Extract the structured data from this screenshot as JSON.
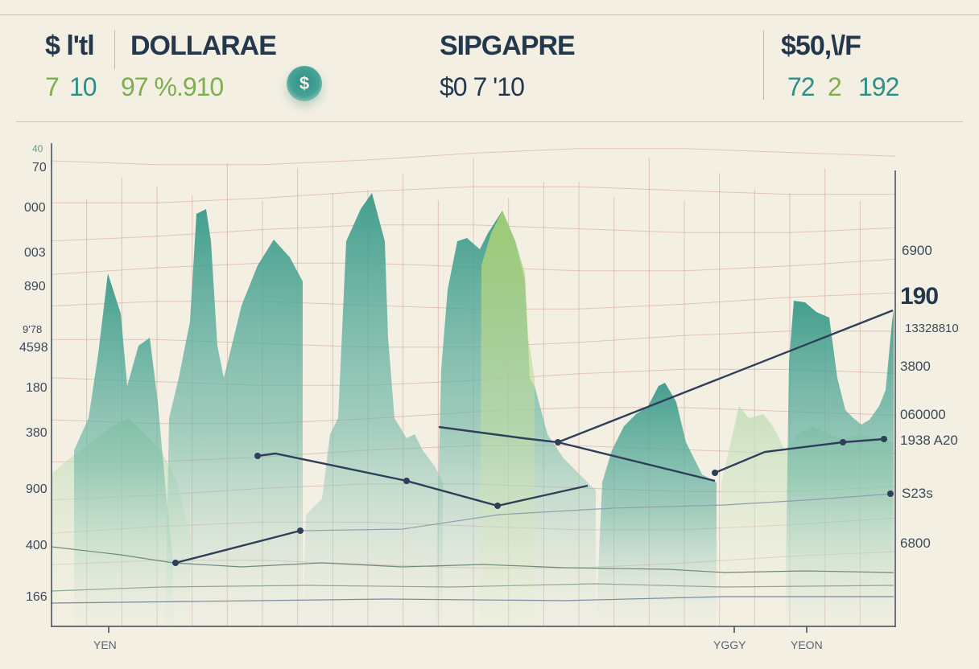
{
  "header": {
    "col1_title": "$ l'tl",
    "col1_value_a": "7",
    "col1_value_b": "10",
    "col2_title": "DOLLARAE",
    "col2_value": "97 %.910",
    "badge_symbol": "$",
    "col3_title": "SIPGAPRE",
    "col3_value": "$0 7 '10",
    "col4_title": "$50,\\/F",
    "col4_value_a": "72",
    "col4_value_b": "2",
    "col4_value_c": "192"
  },
  "chart_data": {
    "type": "area",
    "title": "",
    "y_left_ticks": [
      "40",
      "70",
      "000",
      "003",
      "890",
      "9'78",
      "4598",
      "180",
      "380",
      "900",
      "400",
      "166"
    ],
    "y_right_ticks": [
      "6900",
      "190",
      "13328810",
      "3800",
      "060000",
      "1938 A20",
      "S23s",
      "6800"
    ],
    "x_ticks": [
      "YEN",
      "YGGY",
      "YEON"
    ],
    "colors": {
      "navy": "#2e3f59",
      "teal": "#2f8f84",
      "green": "#9cc76a",
      "grid": "#c58f8f"
    }
  }
}
